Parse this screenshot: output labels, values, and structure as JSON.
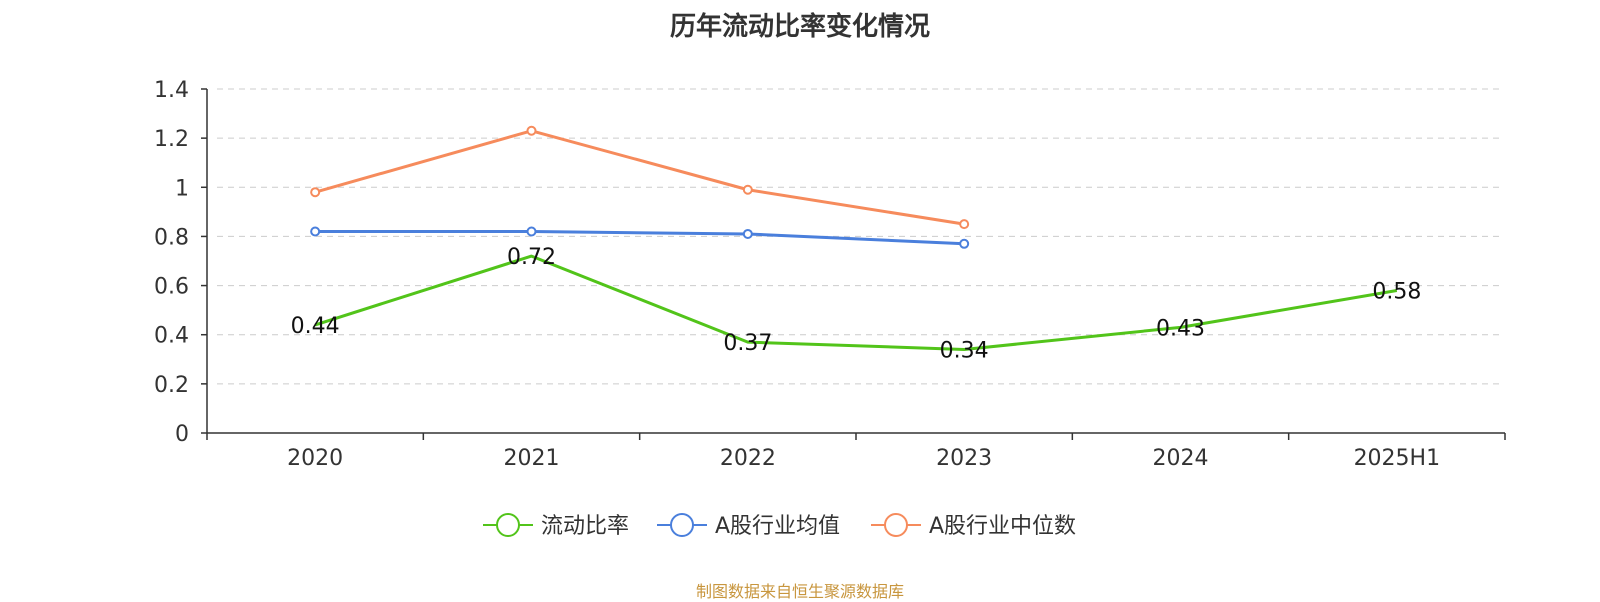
{
  "chart_data": {
    "type": "line",
    "title": "历年流动比率变化情况",
    "categories": [
      "2020",
      "2021",
      "2022",
      "2023",
      "2024",
      "2025H1"
    ],
    "ylim": [
      0,
      1.4
    ],
    "yticks": [
      "0",
      "0.2",
      "0.4",
      "0.6",
      "0.8",
      "1",
      "1.2",
      "1.4"
    ],
    "grid": true,
    "legend_position": "bottom",
    "series": [
      {
        "name": "流动比率",
        "color": "#52c41a",
        "values": [
          0.44,
          0.72,
          0.37,
          0.34,
          0.43,
          0.58
        ],
        "labels": [
          "0.44",
          "0.72",
          "0.37",
          "0.34",
          "0.43",
          "0.58"
        ]
      },
      {
        "name": "A股行业均值",
        "color": "#4a7fdc",
        "values": [
          0.82,
          0.82,
          0.81,
          0.77,
          null,
          null
        ]
      },
      {
        "name": "A股行业中位数",
        "color": "#f68b5c",
        "values": [
          0.98,
          1.23,
          0.99,
          0.85,
          null,
          null
        ]
      }
    ]
  },
  "source": "制图数据来自恒生聚源数据库"
}
